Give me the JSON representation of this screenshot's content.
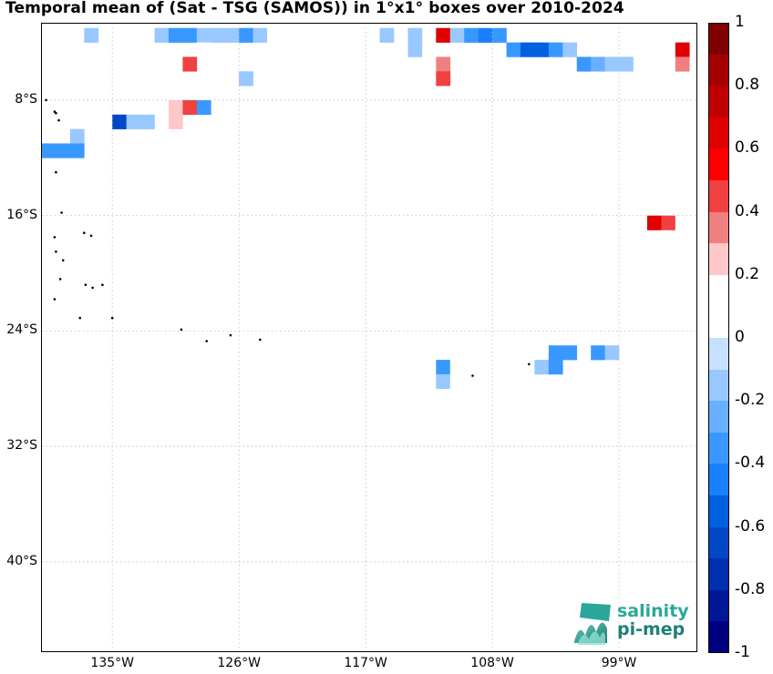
{
  "title": "Temporal mean of (Sat - TSG (SAMOS)) in 1°x1° boxes over 2010-2024",
  "lat_labels": [
    {
      "label": "8°S",
      "lat": -8
    },
    {
      "label": "16°S",
      "lat": -16
    },
    {
      "label": "24°S",
      "lat": -24
    },
    {
      "label": "32°S",
      "lat": -32
    },
    {
      "label": "40°S",
      "lat": -40
    }
  ],
  "lon_labels": [
    {
      "label": "135°W",
      "lon": -135
    },
    {
      "label": "126°W",
      "lon": -126
    },
    {
      "label": "117°W",
      "lon": -117
    },
    {
      "label": "108°W",
      "lon": -108
    },
    {
      "label": "99°W",
      "lon": -99
    }
  ],
  "colorbar": {
    "min": -1,
    "max": 1,
    "ticks": [
      "1",
      "0.8",
      "0.6",
      "0.4",
      "0.2",
      "0",
      "-0.2",
      "-0.4",
      "-0.6",
      "-0.8",
      "-1"
    ],
    "colors": [
      "#7f0000",
      "#a50000",
      "#c00000",
      "#e00000",
      "#ff0000",
      "#f04040",
      "#f08080",
      "#ffc8c8",
      "#ffffff",
      "#ffffff",
      "#c8e0ff",
      "#98c8ff",
      "#68b0ff",
      "#3898ff",
      "#1880ff",
      "#0060e0",
      "#0048c8",
      "#0030b0",
      "#001898",
      "#000080"
    ]
  },
  "logo": {
    "line1": "salinity",
    "line2": "pi-mep"
  },
  "map_data": {
    "lon_range": [
      -140,
      -93.5
    ],
    "lat_range": [
      -2.7,
      -46.2
    ],
    "cells": [
      {
        "lon": -136.5,
        "lat": -3.5,
        "v": -0.15
      },
      {
        "lon": -131.5,
        "lat": -3.5,
        "v": -0.15
      },
      {
        "lon": -130.5,
        "lat": -3.5,
        "v": -0.3
      },
      {
        "lon": -129.5,
        "lat": -3.5,
        "v": -0.3
      },
      {
        "lon": -128.5,
        "lat": -3.5,
        "v": -0.15
      },
      {
        "lon": -127.5,
        "lat": -3.5,
        "v": -0.15
      },
      {
        "lon": -126.5,
        "lat": -3.5,
        "v": -0.15
      },
      {
        "lon": -125.5,
        "lat": -3.5,
        "v": -0.3
      },
      {
        "lon": -124.5,
        "lat": -3.5,
        "v": -0.15
      },
      {
        "lon": -123.5,
        "lat": -3.5,
        "v": 0.15
      },
      {
        "lon": -115.5,
        "lat": -3.5,
        "v": -0.15
      },
      {
        "lon": -113.5,
        "lat": -3.5,
        "v": -0.15
      },
      {
        "lon": -111.5,
        "lat": -3.5,
        "v": 0.65
      },
      {
        "lon": -110.5,
        "lat": -3.5,
        "v": -0.15
      },
      {
        "lon": -109.5,
        "lat": -3.5,
        "v": -0.3
      },
      {
        "lon": -108.5,
        "lat": -3.5,
        "v": -0.45
      },
      {
        "lon": -107.5,
        "lat": -3.5,
        "v": -0.3
      },
      {
        "lon": -94.5,
        "lat": -3.5,
        "v": 0.15
      },
      {
        "lon": -128.5,
        "lat": -4.5,
        "v": 0.15
      },
      {
        "lon": -113.5,
        "lat": -4.5,
        "v": -0.15
      },
      {
        "lon": -106.5,
        "lat": -4.5,
        "v": -0.3
      },
      {
        "lon": -105.5,
        "lat": -4.5,
        "v": -0.5
      },
      {
        "lon": -104.5,
        "lat": -4.5,
        "v": -0.5
      },
      {
        "lon": -103.5,
        "lat": -4.5,
        "v": -0.3
      },
      {
        "lon": -102.5,
        "lat": -4.5,
        "v": -0.15
      },
      {
        "lon": -94.5,
        "lat": -4.5,
        "v": 0.65
      },
      {
        "lon": -129.5,
        "lat": -5.5,
        "v": 0.45
      },
      {
        "lon": -127.5,
        "lat": -5.5,
        "v": 0.15
      },
      {
        "lon": -111.5,
        "lat": -5.5,
        "v": 0.35
      },
      {
        "lon": -101.5,
        "lat": -5.5,
        "v": -0.3
      },
      {
        "lon": -100.5,
        "lat": -5.5,
        "v": -0.25
      },
      {
        "lon": -99.5,
        "lat": -5.5,
        "v": -0.15
      },
      {
        "lon": -98.5,
        "lat": -5.5,
        "v": -0.15
      },
      {
        "lon": -94.5,
        "lat": -5.5,
        "v": 0.35
      },
      {
        "lon": -125.5,
        "lat": -6.5,
        "v": -0.15
      },
      {
        "lon": -111.5,
        "lat": -6.5,
        "v": 0.45
      },
      {
        "lon": -127.5,
        "lat": -7.5,
        "v": 0.15
      },
      {
        "lon": -126.5,
        "lat": -7.5,
        "v": 0.15
      },
      {
        "lon": -130.5,
        "lat": -8.5,
        "v": 0.3
      },
      {
        "lon": -129.5,
        "lat": -8.5,
        "v": 0.45
      },
      {
        "lon": -128.5,
        "lat": -8.5,
        "v": -0.3
      },
      {
        "lon": -134.5,
        "lat": -9.5,
        "v": -0.6
      },
      {
        "lon": -133.5,
        "lat": -9.5,
        "v": -0.15
      },
      {
        "lon": -132.5,
        "lat": -9.5,
        "v": -0.15
      },
      {
        "lon": -130.5,
        "lat": -9.5,
        "v": 0.3
      },
      {
        "lon": -137.5,
        "lat": -10.5,
        "v": -0.15
      },
      {
        "lon": -139.5,
        "lat": -11.5,
        "v": -0.3
      },
      {
        "lon": -138.5,
        "lat": -11.5,
        "v": -0.3
      },
      {
        "lon": -137.5,
        "lat": -11.5,
        "v": -0.3
      },
      {
        "lon": -96.5,
        "lat": -16.5,
        "v": 0.65
      },
      {
        "lon": -95.5,
        "lat": -16.5,
        "v": 0.45
      },
      {
        "lon": -94.5,
        "lat": -16.5,
        "v": 0.15
      },
      {
        "lon": -94.5,
        "lat": -17.5,
        "v": 0.15
      },
      {
        "lon": -103.5,
        "lat": -25.5,
        "v": -0.3
      },
      {
        "lon": -102.5,
        "lat": -25.5,
        "v": -0.3
      },
      {
        "lon": -100.5,
        "lat": -25.5,
        "v": -0.3
      },
      {
        "lon": -99.5,
        "lat": -25.5,
        "v": -0.15
      },
      {
        "lon": -111.5,
        "lat": -26.5,
        "v": -0.3
      },
      {
        "lon": -110.5,
        "lat": -26.5,
        "v": 0.15
      },
      {
        "lon": -109.5,
        "lat": -26.5,
        "v": 0.15
      },
      {
        "lon": -108.5,
        "lat": -26.5,
        "v": 0.15
      },
      {
        "lon": -104.5,
        "lat": -26.5,
        "v": -0.15
      },
      {
        "lon": -103.5,
        "lat": -26.5,
        "v": -0.3
      },
      {
        "lon": -111.5,
        "lat": -27.5,
        "v": -0.15
      },
      {
        "lon": -110.5,
        "lat": -27.5,
        "v": 0.15
      }
    ],
    "islands": [
      [
        -139.7,
        -8.0
      ],
      [
        -139.1,
        -8.8
      ],
      [
        -139.0,
        -8.9
      ],
      [
        -138.8,
        -9.4
      ],
      [
        -139.0,
        -13.0
      ],
      [
        -138.6,
        -15.8
      ],
      [
        -139.1,
        -17.5
      ],
      [
        -137.0,
        -17.2
      ],
      [
        -136.5,
        -17.4
      ],
      [
        -139.0,
        -18.5
      ],
      [
        -138.5,
        -19.1
      ],
      [
        -138.7,
        -20.4
      ],
      [
        -136.9,
        -20.8
      ],
      [
        -136.4,
        -21.0
      ],
      [
        -135.7,
        -20.8
      ],
      [
        -139.1,
        -21.8
      ],
      [
        -135.0,
        -23.1
      ],
      [
        -137.3,
        -23.1
      ],
      [
        -130.1,
        -23.9
      ],
      [
        -128.3,
        -24.7
      ],
      [
        -126.6,
        -24.3
      ],
      [
        -124.5,
        -24.6
      ],
      [
        -109.4,
        -27.1
      ],
      [
        -105.4,
        -26.3
      ]
    ]
  }
}
